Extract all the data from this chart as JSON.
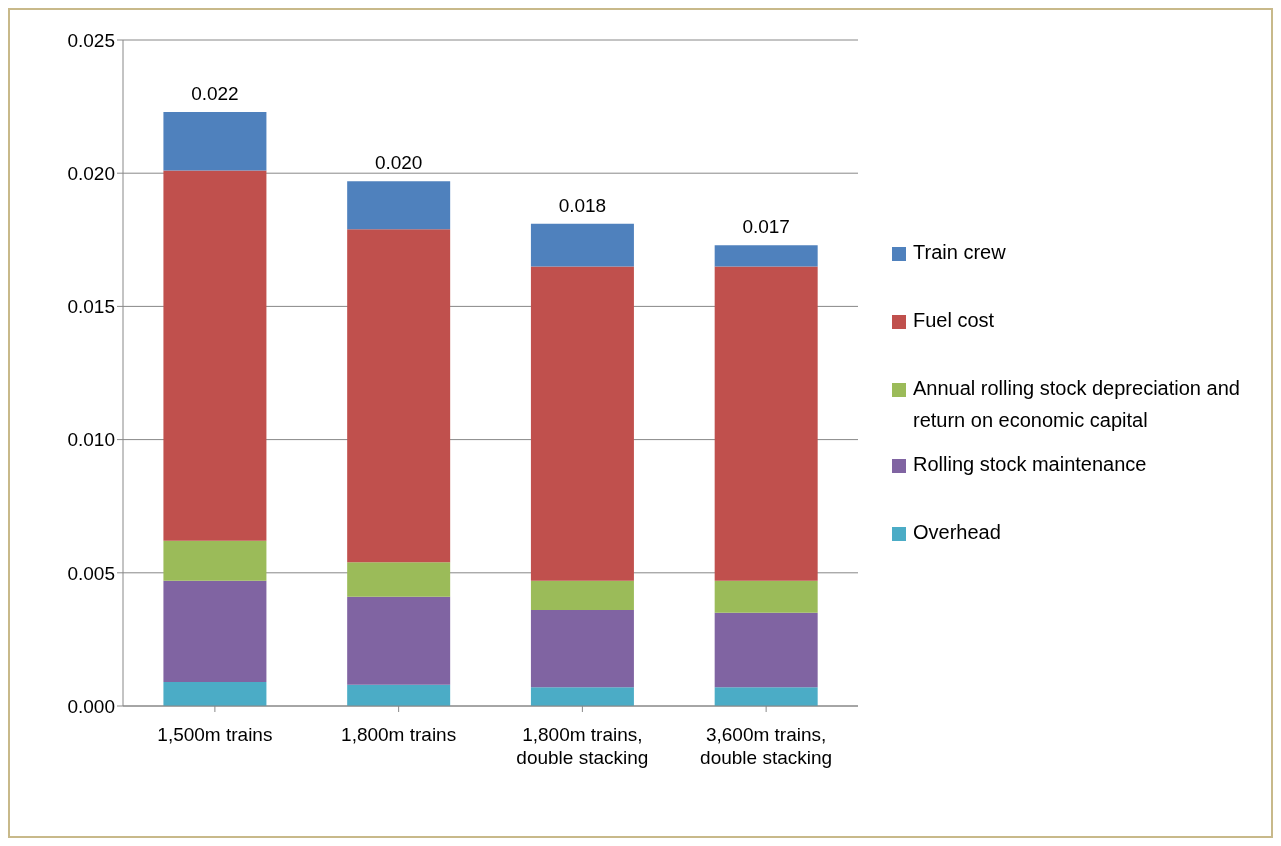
{
  "chart_data": {
    "type": "bar",
    "stacked": true,
    "categories": [
      "1,500m trains",
      "1,800m trains",
      "1,800m trains,\ndouble stacking",
      "3,600m trains,\ndouble stacking"
    ],
    "series": [
      {
        "name": "Overhead",
        "color": "#4bacc6",
        "values": [
          0.0009,
          0.0008,
          0.0007,
          0.0007
        ]
      },
      {
        "name": "Rolling stock maintenance",
        "color": "#8064a2",
        "values": [
          0.0038,
          0.0033,
          0.0029,
          0.0028
        ]
      },
      {
        "name": "Annual rolling stock depreciation and return on economic capital",
        "color": "#9bbb59",
        "values": [
          0.0015,
          0.0013,
          0.0011,
          0.0012
        ]
      },
      {
        "name": "Fuel cost",
        "color": "#c0504d",
        "values": [
          0.0139,
          0.0125,
          0.0118,
          0.0118
        ]
      },
      {
        "name": "Train crew",
        "color": "#4f81bd",
        "values": [
          0.0022,
          0.0018,
          0.0016,
          0.0008
        ]
      }
    ],
    "totals": [
      "0.022",
      "0.020",
      "0.018",
      "0.017"
    ],
    "ylim": [
      0,
      0.025
    ],
    "yticks": [
      {
        "value": 0,
        "label": "0.000"
      },
      {
        "value": 0.005,
        "label": "0.005"
      },
      {
        "value": 0.01,
        "label": "0.010"
      },
      {
        "value": 0.015,
        "label": "0.015"
      },
      {
        "value": 0.02,
        "label": "0.020"
      },
      {
        "value": 0.025,
        "label": "0.025"
      }
    ],
    "grid": "y",
    "legend": "right"
  }
}
